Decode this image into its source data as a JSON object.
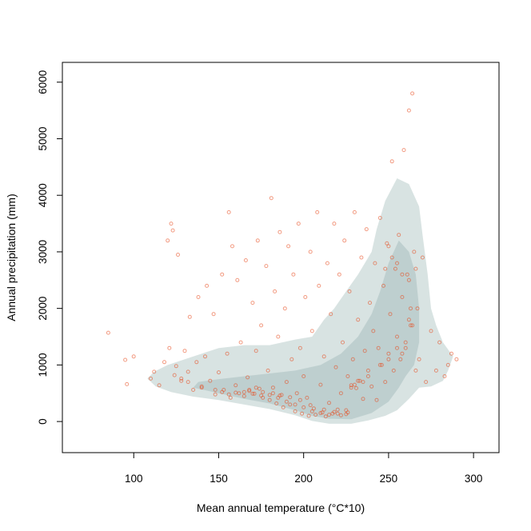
{
  "chart_data": {
    "type": "scatter",
    "title": "",
    "xlabel": "Mean annual temperature (°C*10)",
    "ylabel": "Annual precipitation (mm)",
    "xlim": [
      58,
      315
    ],
    "ylim": [
      -550,
      6350
    ],
    "x_ticks": [
      "100",
      "150",
      "200",
      "250",
      "300"
    ],
    "y_ticks": [
      "0",
      "1000",
      "2000",
      "3000",
      "4000",
      "5000",
      "6000"
    ],
    "grid": false,
    "legend": "none",
    "colors": {
      "points": "#e8481b",
      "density_outer": "#d4e0df",
      "density_inner": "#a9c0bf",
      "axis": "#000000"
    },
    "density_regions": [
      {
        "name": "outer-density",
        "points": [
          [
            108,
            760
          ],
          [
            113,
            620
          ],
          [
            122,
            520
          ],
          [
            135,
            440
          ],
          [
            150,
            380
          ],
          [
            165,
            300
          ],
          [
            180,
            220
          ],
          [
            195,
            110
          ],
          [
            205,
            10
          ],
          [
            215,
            -40
          ],
          [
            228,
            -40
          ],
          [
            238,
            20
          ],
          [
            248,
            100
          ],
          [
            255,
            200
          ],
          [
            262,
            400
          ],
          [
            268,
            600
          ],
          [
            275,
            620
          ],
          [
            282,
            720
          ],
          [
            285,
            900
          ],
          [
            288,
            1150
          ],
          [
            282,
            1400
          ],
          [
            278,
            1700
          ],
          [
            275,
            2000
          ],
          [
            273,
            2600
          ],
          [
            270,
            3300
          ],
          [
            268,
            3800
          ],
          [
            262,
            4200
          ],
          [
            255,
            4300
          ],
          [
            248,
            3900
          ],
          [
            243,
            3400
          ],
          [
            240,
            3000
          ],
          [
            232,
            2600
          ],
          [
            225,
            2300
          ],
          [
            218,
            2000
          ],
          [
            212,
            1800
          ],
          [
            205,
            1500
          ],
          [
            195,
            1450
          ],
          [
            180,
            1350
          ],
          [
            165,
            1350
          ],
          [
            150,
            1300
          ],
          [
            135,
            1150
          ],
          [
            120,
            1000
          ],
          [
            112,
            880
          ]
        ]
      },
      {
        "name": "inner-density",
        "points": [
          [
            135,
            600
          ],
          [
            150,
            500
          ],
          [
            165,
            400
          ],
          [
            180,
            320
          ],
          [
            195,
            200
          ],
          [
            205,
            100
          ],
          [
            215,
            50
          ],
          [
            228,
            40
          ],
          [
            240,
            150
          ],
          [
            250,
            350
          ],
          [
            256,
            600
          ],
          [
            260,
            800
          ],
          [
            265,
            1000
          ],
          [
            268,
            1400
          ],
          [
            268,
            2000
          ],
          [
            266,
            2600
          ],
          [
            262,
            3000
          ],
          [
            256,
            3200
          ],
          [
            250,
            2800
          ],
          [
            245,
            2300
          ],
          [
            240,
            1900
          ],
          [
            232,
            1500
          ],
          [
            222,
            1200
          ],
          [
            210,
            1000
          ],
          [
            195,
            900
          ],
          [
            180,
            850
          ],
          [
            165,
            800
          ],
          [
            150,
            750
          ],
          [
            138,
            700
          ]
        ]
      }
    ],
    "series": [
      {
        "points": [
          [
            85,
            1570
          ],
          [
            95,
            1090
          ],
          [
            96,
            660
          ],
          [
            100,
            1150
          ],
          [
            110,
            760
          ],
          [
            112,
            880
          ],
          [
            115,
            640
          ],
          [
            118,
            1050
          ],
          [
            120,
            3200
          ],
          [
            121,
            1300
          ],
          [
            122,
            3500
          ],
          [
            123,
            3380
          ],
          [
            125,
            980
          ],
          [
            126,
            2950
          ],
          [
            128,
            720
          ],
          [
            130,
            1250
          ],
          [
            132,
            880
          ],
          [
            133,
            1850
          ],
          [
            135,
            560
          ],
          [
            137,
            1050
          ],
          [
            138,
            2200
          ],
          [
            140,
            600
          ],
          [
            142,
            1150
          ],
          [
            143,
            2400
          ],
          [
            145,
            720
          ],
          [
            147,
            1900
          ],
          [
            148,
            480
          ],
          [
            150,
            870
          ],
          [
            152,
            2600
          ],
          [
            153,
            560
          ],
          [
            155,
            1200
          ],
          [
            156,
            3700
          ],
          [
            157,
            420
          ],
          [
            158,
            3100
          ],
          [
            160,
            640
          ],
          [
            161,
            2500
          ],
          [
            162,
            500
          ],
          [
            163,
            1400
          ],
          [
            165,
            450
          ],
          [
            166,
            2850
          ],
          [
            167,
            780
          ],
          [
            168,
            560
          ],
          [
            170,
            2100
          ],
          [
            171,
            490
          ],
          [
            172,
            1250
          ],
          [
            173,
            3200
          ],
          [
            174,
            580
          ],
          [
            175,
            1700
          ],
          [
            176,
            420
          ],
          [
            178,
            2750
          ],
          [
            179,
            900
          ],
          [
            180,
            380
          ],
          [
            181,
            3950
          ],
          [
            182,
            600
          ],
          [
            183,
            2300
          ],
          [
            184,
            320
          ],
          [
            185,
            1500
          ],
          [
            186,
            3350
          ],
          [
            187,
            470
          ],
          [
            188,
            250
          ],
          [
            189,
            2000
          ],
          [
            190,
            700
          ],
          [
            191,
            3100
          ],
          [
            192,
            300
          ],
          [
            193,
            1100
          ],
          [
            194,
            2600
          ],
          [
            195,
            180
          ],
          [
            196,
            500
          ],
          [
            197,
            3500
          ],
          [
            198,
            1300
          ],
          [
            199,
            140
          ],
          [
            200,
            800
          ],
          [
            201,
            2200
          ],
          [
            202,
            420
          ],
          [
            203,
            100
          ],
          [
            204,
            3000
          ],
          [
            205,
            1600
          ],
          [
            206,
            230
          ],
          [
            207,
            120
          ],
          [
            208,
            3700
          ],
          [
            209,
            2400
          ],
          [
            210,
            650
          ],
          [
            211,
            160
          ],
          [
            212,
            1150
          ],
          [
            213,
            90
          ],
          [
            214,
            2800
          ],
          [
            215,
            330
          ],
          [
            216,
            1900
          ],
          [
            217,
            140
          ],
          [
            218,
            3500
          ],
          [
            219,
            960
          ],
          [
            220,
            210
          ],
          [
            221,
            2600
          ],
          [
            222,
            500
          ],
          [
            223,
            1400
          ],
          [
            224,
            3200
          ],
          [
            225,
            130
          ],
          [
            226,
            800
          ],
          [
            227,
            2300
          ],
          [
            228,
            640
          ],
          [
            229,
            1100
          ],
          [
            230,
            3700
          ],
          [
            231,
            590
          ],
          [
            232,
            1800
          ],
          [
            233,
            720
          ],
          [
            234,
            2900
          ],
          [
            235,
            400
          ],
          [
            236,
            1250
          ],
          [
            237,
            3400
          ],
          [
            238,
            900
          ],
          [
            239,
            2100
          ],
          [
            240,
            620
          ],
          [
            241,
            1600
          ],
          [
            242,
            2800
          ],
          [
            243,
            380
          ],
          [
            244,
            1300
          ],
          [
            245,
            3600
          ],
          [
            246,
            1000
          ],
          [
            247,
            2400
          ],
          [
            248,
            700
          ],
          [
            249,
            3150
          ],
          [
            250,
            1200
          ],
          [
            251,
            1900
          ],
          [
            252,
            4600
          ],
          [
            253,
            900
          ],
          [
            254,
            2700
          ],
          [
            255,
            1500
          ],
          [
            256,
            3300
          ],
          [
            257,
            1100
          ],
          [
            258,
            2200
          ],
          [
            259,
            4800
          ],
          [
            260,
            1300
          ],
          [
            261,
            2600
          ],
          [
            262,
            5500
          ],
          [
            263,
            1700
          ],
          [
            264,
            5800
          ],
          [
            265,
            3000
          ],
          [
            266,
            900
          ],
          [
            267,
            2000
          ],
          [
            268,
            1100
          ],
          [
            270,
            2900
          ],
          [
            272,
            700
          ],
          [
            275,
            1600
          ],
          [
            278,
            900
          ],
          [
            280,
            1400
          ],
          [
            283,
            800
          ],
          [
            285,
            1000
          ],
          [
            287,
            1200
          ],
          [
            290,
            1100
          ],
          [
            160,
            510
          ],
          [
            165,
            520
          ],
          [
            170,
            490
          ],
          [
            175,
            460
          ],
          [
            180,
            470
          ],
          [
            185,
            420
          ],
          [
            190,
            350
          ],
          [
            195,
            300
          ],
          [
            200,
            250
          ],
          [
            205,
            180
          ],
          [
            210,
            150
          ],
          [
            215,
            120
          ],
          [
            220,
            140
          ],
          [
            225,
            200
          ],
          [
            230,
            650
          ],
          [
            235,
            700
          ],
          [
            228,
            600
          ],
          [
            232,
            720
          ],
          [
            238,
            800
          ],
          [
            245,
            1000
          ],
          [
            250,
            1100
          ],
          [
            255,
            1300
          ],
          [
            258,
            1200
          ],
          [
            260,
            1400
          ],
          [
            262,
            1800
          ],
          [
            263,
            2000
          ],
          [
            264,
            1700
          ],
          [
            258,
            2600
          ],
          [
            255,
            2800
          ],
          [
            252,
            2900
          ],
          [
            250,
            3100
          ],
          [
            248,
            2700
          ],
          [
            262,
            2500
          ],
          [
            266,
            2700
          ],
          [
            168,
            540
          ],
          [
            172,
            600
          ],
          [
            176,
            520
          ],
          [
            182,
            500
          ],
          [
            186,
            460
          ],
          [
            192,
            430
          ],
          [
            198,
            380
          ],
          [
            204,
            290
          ],
          [
            212,
            210
          ],
          [
            218,
            170
          ],
          [
            222,
            110
          ],
          [
            226,
            160
          ],
          [
            148,
            560
          ],
          [
            152,
            520
          ],
          [
            156,
            480
          ],
          [
            140,
            620
          ],
          [
            132,
            700
          ],
          [
            128,
            760
          ],
          [
            124,
            820
          ]
        ]
      }
    ]
  }
}
